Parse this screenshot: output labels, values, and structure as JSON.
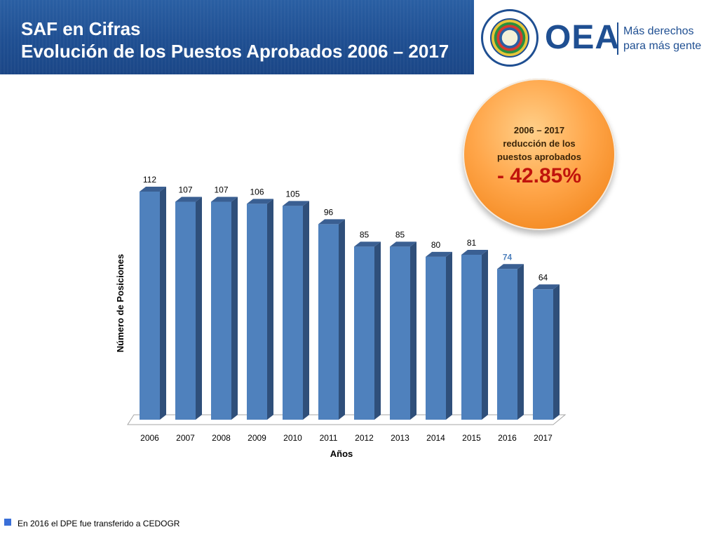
{
  "header": {
    "title_line1": "SAF en Cifras",
    "title_line2": "Evolución de los Puestos Aprobados 2006 – 2017",
    "logo_text": "OEA",
    "tagline_line1": "Más derechos",
    "tagline_line2": "para más gente"
  },
  "callout": {
    "line1": "2006 – 2017",
    "line2": "reducción de los",
    "line3": "puestos aprobados",
    "value": "- 42.85%"
  },
  "chart_data": {
    "type": "bar",
    "categories": [
      "2006",
      "2007",
      "2008",
      "2009",
      "2010",
      "2011",
      "2012",
      "2013",
      "2014",
      "2015",
      "2016",
      "2017"
    ],
    "values": [
      112,
      107,
      107,
      106,
      105,
      96,
      85,
      85,
      80,
      81,
      74,
      64
    ],
    "data_labels": [
      "112",
      "107",
      "107",
      "106",
      "105",
      "96",
      "85",
      "85",
      "80",
      "81",
      "74",
      "64"
    ],
    "highlighted_label_index": 10,
    "title": "",
    "xlabel": "Años",
    "ylabel": "Número de Posiciones",
    "ylim": [
      0,
      112
    ],
    "grid": false,
    "bar_color": "#4f81bd",
    "bar_side_color": "#2f4f7a",
    "bar_top_color": "#3a5f92",
    "highlight_label_color": "#4f81bd"
  },
  "footnote": {
    "text": "En 2016 el DPE fue transferido a CEDOGR"
  },
  "colors": {
    "header_blue": "#1f4f92",
    "callout_orange": "#f48a22",
    "callout_value_red": "#c0140c",
    "footnote_square": "#3a6fd8"
  }
}
